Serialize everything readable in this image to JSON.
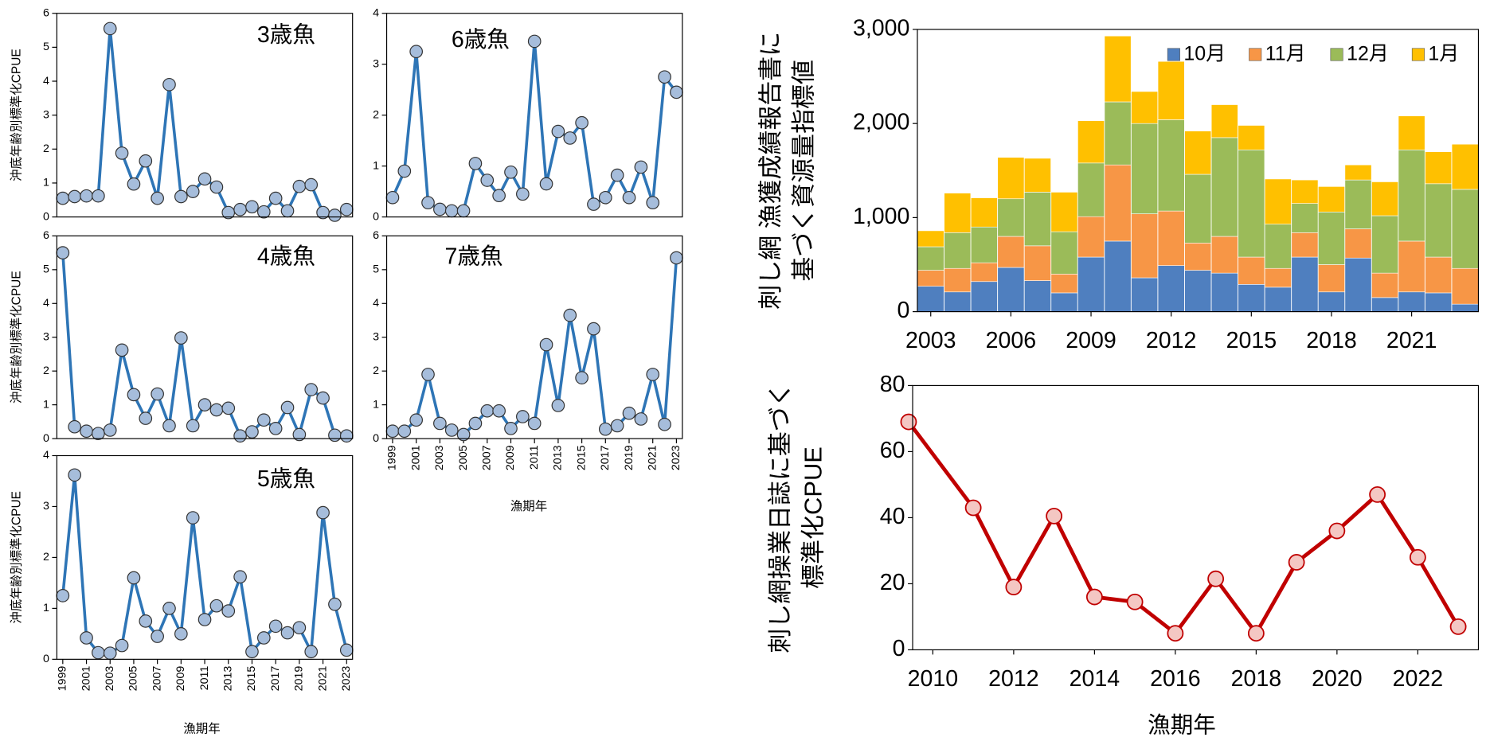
{
  "chart_data": [
    {
      "type": "line",
      "title": "3歳魚",
      "ylabel": "沖底年齢別標準化CPUE",
      "x": [
        1999,
        2000,
        2001,
        2002,
        2003,
        2004,
        2005,
        2006,
        2007,
        2008,
        2009,
        2010,
        2011,
        2012,
        2013,
        2014,
        2015,
        2016,
        2017,
        2018,
        2019,
        2020,
        2021,
        2022,
        2023
      ],
      "xlim": [
        1998.5,
        2023.5
      ],
      "ylim": [
        0,
        6
      ],
      "yticks": [
        0,
        1,
        2,
        3,
        4,
        5,
        6
      ],
      "color": "#2e75b6",
      "marker_color": "#a6bddb",
      "values": [
        0.55,
        0.6,
        0.62,
        0.62,
        5.55,
        1.88,
        0.97,
        1.65,
        0.55,
        3.9,
        0.6,
        0.75,
        1.12,
        0.88,
        0.13,
        0.22,
        0.3,
        0.15,
        0.55,
        0.18,
        0.9,
        0.95,
        0.13,
        0.05,
        0.22
      ]
    },
    {
      "type": "line",
      "title": "4歳魚",
      "ylabel": "沖底年齢別標準化CPUE",
      "x": [
        1999,
        2000,
        2001,
        2002,
        2003,
        2004,
        2005,
        2006,
        2007,
        2008,
        2009,
        2010,
        2011,
        2012,
        2013,
        2014,
        2015,
        2016,
        2017,
        2018,
        2019,
        2020,
        2021,
        2022,
        2023
      ],
      "xlim": [
        1998.5,
        2023.5
      ],
      "ylim": [
        0,
        6
      ],
      "yticks": [
        0,
        1,
        2,
        3,
        4,
        5,
        6
      ],
      "color": "#2e75b6",
      "marker_color": "#a6bddb",
      "values": [
        5.5,
        0.35,
        0.22,
        0.15,
        0.25,
        2.62,
        1.3,
        0.6,
        1.32,
        0.38,
        2.98,
        0.38,
        1.0,
        0.85,
        0.9,
        0.08,
        0.2,
        0.55,
        0.3,
        0.92,
        0.12,
        1.45,
        1.2,
        0.1,
        0.08
      ]
    },
    {
      "type": "line",
      "title": "5歳魚",
      "ylabel": "沖底年齢別標準化CPUE",
      "xlabel": "漁期年",
      "x": [
        1999,
        2000,
        2001,
        2002,
        2003,
        2004,
        2005,
        2006,
        2007,
        2008,
        2009,
        2010,
        2011,
        2012,
        2013,
        2014,
        2015,
        2016,
        2017,
        2018,
        2019,
        2020,
        2021,
        2022,
        2023
      ],
      "xlim": [
        1998.5,
        2023.5
      ],
      "xticks": [
        1999,
        2001,
        2003,
        2005,
        2007,
        2009,
        2011,
        2013,
        2015,
        2017,
        2019,
        2021,
        2023
      ],
      "ylim": [
        0,
        4
      ],
      "yticks": [
        0,
        1,
        2,
        3,
        4
      ],
      "color": "#2e75b6",
      "marker_color": "#a6bddb",
      "values": [
        1.25,
        3.62,
        0.42,
        0.13,
        0.12,
        0.27,
        1.6,
        0.75,
        0.45,
        1.0,
        0.5,
        2.78,
        0.78,
        1.05,
        0.95,
        1.62,
        0.15,
        0.42,
        0.65,
        0.52,
        0.62,
        0.15,
        2.88,
        1.08,
        0.18
      ]
    },
    {
      "type": "line",
      "title": "6歳魚",
      "x": [
        1999,
        2000,
        2001,
        2002,
        2003,
        2004,
        2005,
        2006,
        2007,
        2008,
        2009,
        2010,
        2011,
        2012,
        2013,
        2014,
        2015,
        2016,
        2017,
        2018,
        2019,
        2020,
        2021,
        2022,
        2023
      ],
      "xlim": [
        1998.5,
        2023.5
      ],
      "ylim": [
        0,
        4
      ],
      "yticks": [
        0,
        1,
        2,
        3,
        4
      ],
      "color": "#2e75b6",
      "marker_color": "#a6bddb",
      "values": [
        0.38,
        0.9,
        3.25,
        0.28,
        0.15,
        0.12,
        0.12,
        1.05,
        0.72,
        0.42,
        0.88,
        0.45,
        3.45,
        0.65,
        1.68,
        1.55,
        1.85,
        0.25,
        0.38,
        0.82,
        0.38,
        0.98,
        0.28,
        2.75,
        2.45
      ]
    },
    {
      "type": "line",
      "title": "7歳魚",
      "xlabel": "漁期年",
      "x": [
        1999,
        2000,
        2001,
        2002,
        2003,
        2004,
        2005,
        2006,
        2007,
        2008,
        2009,
        2010,
        2011,
        2012,
        2013,
        2014,
        2015,
        2016,
        2017,
        2018,
        2019,
        2020,
        2021,
        2022,
        2023
      ],
      "xlim": [
        1998.5,
        2023.5
      ],
      "xticks": [
        1999,
        2001,
        2003,
        2005,
        2007,
        2009,
        2011,
        2013,
        2015,
        2017,
        2019,
        2021,
        2023
      ],
      "ylim": [
        0,
        6
      ],
      "yticks": [
        0,
        1,
        2,
        3,
        4,
        5,
        6
      ],
      "color": "#2e75b6",
      "marker_color": "#a6bddb",
      "values": [
        0.22,
        0.22,
        0.55,
        1.9,
        0.45,
        0.25,
        0.12,
        0.45,
        0.82,
        0.82,
        0.3,
        0.65,
        0.45,
        2.78,
        0.98,
        3.65,
        1.8,
        3.25,
        0.28,
        0.38,
        0.75,
        0.58,
        1.9,
        0.42,
        5.35
      ]
    },
    {
      "type": "bar",
      "stacked": true,
      "legend": "upper right",
      "ylabel": [
        "刺し網 漁獲成績報告書に",
        "基づく資源量指標値"
      ],
      "x": [
        2003,
        2004,
        2005,
        2006,
        2007,
        2008,
        2009,
        2010,
        2011,
        2012,
        2013,
        2014,
        2015,
        2016,
        2017,
        2018,
        2019,
        2020,
        2021,
        2022,
        2023
      ],
      "xlim": [
        2002.5,
        2023.5
      ],
      "xticks": [
        2003,
        2006,
        2009,
        2012,
        2015,
        2018,
        2021
      ],
      "ylim": [
        0,
        3000
      ],
      "yticks": [
        0,
        {
          "value": 1000,
          "label": "1,000"
        },
        {
          "value": 2000,
          "label": "2,000"
        },
        {
          "value": 3000,
          "label": "3,000"
        }
      ],
      "series": [
        {
          "name": "10月",
          "color": "#4f7fbf",
          "values": [
            270,
            210,
            320,
            470,
            330,
            200,
            580,
            750,
            360,
            490,
            440,
            410,
            290,
            260,
            580,
            210,
            570,
            150,
            210,
            200,
            80
          ]
        },
        {
          "name": "11月",
          "color": "#f79646",
          "values": [
            170,
            250,
            200,
            330,
            370,
            200,
            430,
            810,
            680,
            580,
            290,
            390,
            290,
            200,
            260,
            290,
            310,
            260,
            540,
            380,
            380
          ]
        },
        {
          "name": "12月",
          "color": "#9bbb59",
          "values": [
            250,
            380,
            380,
            400,
            570,
            450,
            570,
            670,
            960,
            970,
            730,
            1050,
            1140,
            470,
            310,
            560,
            520,
            610,
            970,
            780,
            840
          ]
        },
        {
          "name": "1月",
          "color": "#ffc000",
          "values": [
            170,
            420,
            310,
            440,
            360,
            420,
            450,
            700,
            340,
            620,
            460,
            350,
            260,
            480,
            250,
            270,
            160,
            360,
            360,
            340,
            480
          ]
        }
      ]
    },
    {
      "type": "line",
      "big": true,
      "ylabel": [
        "刺し網操業日誌に基づく",
        "標準化CPUE"
      ],
      "xlabel": "漁期年",
      "x": [
        2009.4,
        2011,
        2012,
        2013,
        2014,
        2015,
        2016,
        2017,
        2018,
        2019,
        2020,
        2021,
        2022,
        2023
      ],
      "xlim": [
        2009.5,
        2023.5
      ],
      "xticks": [
        2010,
        2012,
        2014,
        2016,
        2018,
        2020,
        2022
      ],
      "ylim": [
        0,
        80
      ],
      "yticks": [
        0,
        20,
        40,
        60,
        80
      ],
      "color": "#c00000",
      "marker_color": "#f4c7c3",
      "values": [
        69,
        43,
        19,
        40.5,
        16,
        14.5,
        5,
        21.5,
        5,
        26.5,
        36,
        47,
        28,
        7
      ]
    }
  ]
}
